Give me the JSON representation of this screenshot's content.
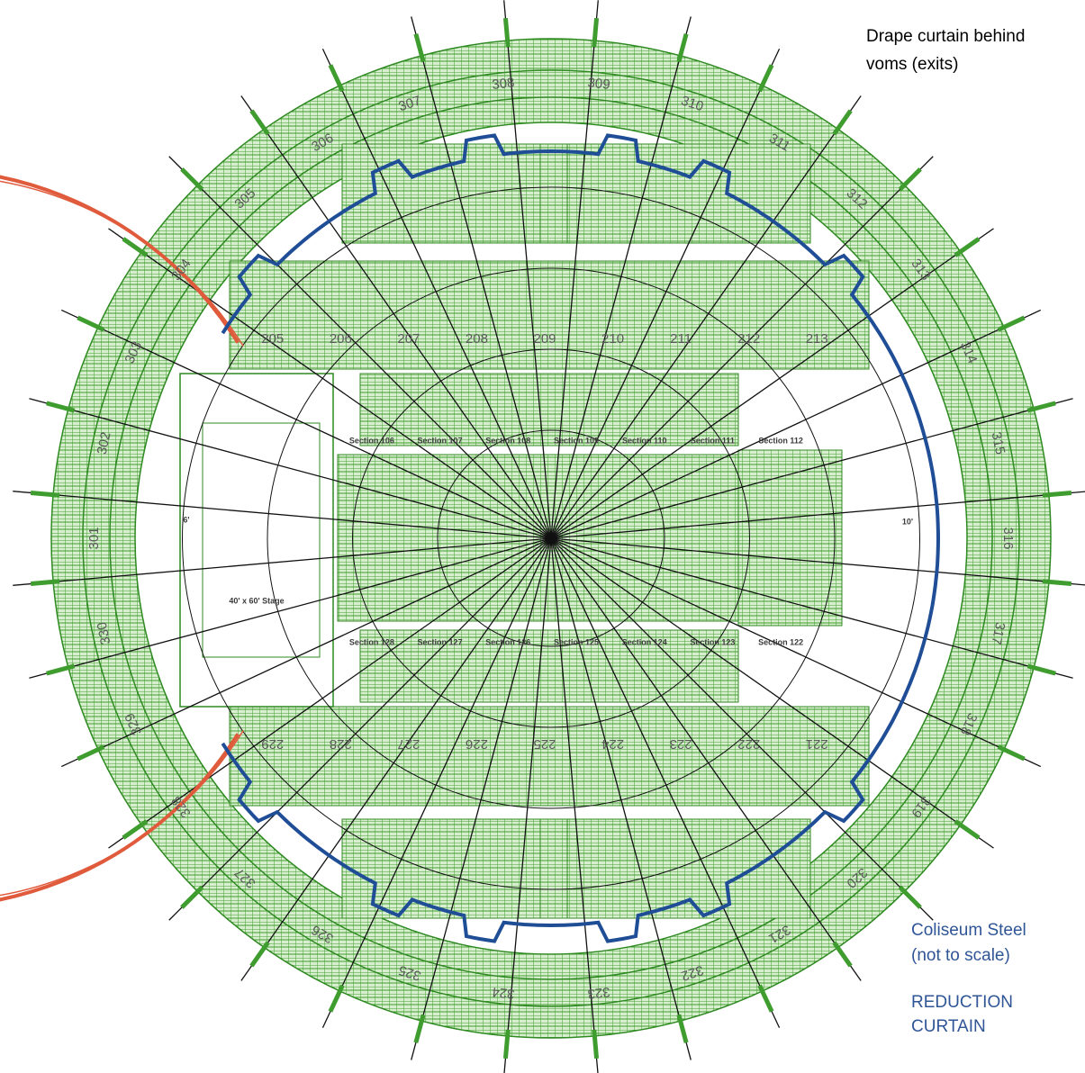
{
  "annotation": [
    "Drape curtain behind",
    "voms (exits)"
  ],
  "legend": {
    "steel": [
      "Coliseum Steel",
      "(not to scale)"
    ],
    "curtain": [
      "REDUCTION",
      "CURTAIN"
    ]
  },
  "upper_sections": [
    "301",
    "302",
    "303",
    "304",
    "305",
    "306",
    "307",
    "308",
    "309",
    "310",
    "311",
    "312",
    "313",
    "314",
    "315",
    "316",
    "317",
    "318",
    "319",
    "320",
    "321",
    "322",
    "323",
    "324",
    "325",
    "326",
    "327",
    "328",
    "329",
    "330"
  ],
  "mid_sections_top": [
    "205",
    "206",
    "207",
    "208",
    "209",
    "210",
    "211",
    "212",
    "213"
  ],
  "mid_sections_bottom": [
    "229",
    "228",
    "227",
    "226",
    "225",
    "224",
    "223",
    "222",
    "221"
  ],
  "floor_sections_top": [
    "Section 106",
    "Section 107",
    "Section 108",
    "Section 109",
    "Section 110",
    "Section 111",
    "Section 112"
  ],
  "floor_sections_bottom": [
    "Section 128",
    "Section 127",
    "Section 126",
    "Section 125",
    "Section 124",
    "Section 123",
    "Section 122"
  ],
  "stage": {
    "label": "40' x 60' Stage",
    "left_gap": "6'",
    "right_gap": "10'"
  }
}
